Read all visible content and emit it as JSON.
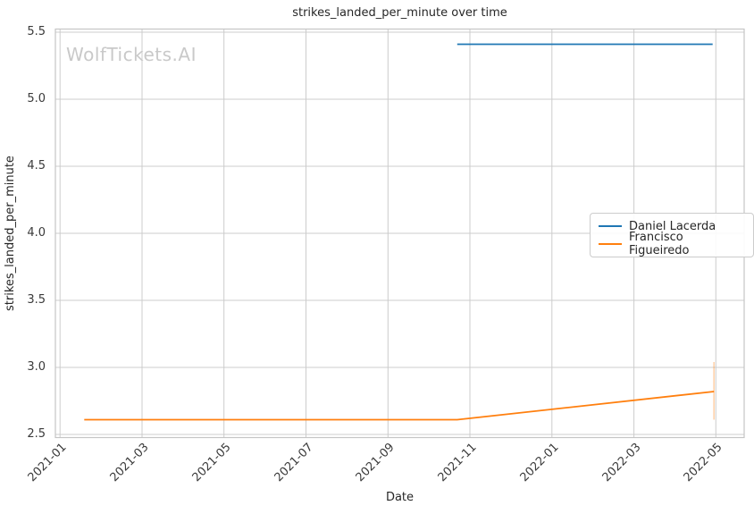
{
  "watermark": {
    "text": "WolfTickets.AI",
    "color": "#c9c9c9"
  },
  "chart_data": {
    "type": "line",
    "title": "strikes_landed_per_minute over time",
    "xlabel": "Date",
    "ylabel": "strikes_landed_per_minute",
    "x_tick_labels": [
      "2021-01",
      "2021-03",
      "2021-05",
      "2021-07",
      "2021-09",
      "2021-11",
      "2022-01",
      "2022-03",
      "2022-05"
    ],
    "y_ticks": [
      2.5,
      3.0,
      3.5,
      4.0,
      4.5,
      5.0,
      5.5
    ],
    "xlim": [
      "2020-12-28",
      "2022-05-22"
    ],
    "ylim": [
      2.477,
      5.523
    ],
    "grid": true,
    "legend_position": "center right",
    "series": [
      {
        "name": "Daniel Lacerda",
        "color": "#1f77b4",
        "points": [
          {
            "x": "2021-10-22",
            "y": 5.41
          },
          {
            "x": "2022-04-29",
            "y": 5.41
          }
        ]
      },
      {
        "name": "Francisco Figueiredo",
        "color": "#ff7f0e",
        "points": [
          {
            "x": "2021-01-19",
            "y": 2.61
          },
          {
            "x": "2021-10-22",
            "y": 2.61
          },
          {
            "x": "2022-04-30",
            "y": 2.82
          }
        ],
        "error_bars": [
          {
            "x": "2022-04-30",
            "low": 2.61,
            "high": 3.04
          }
        ]
      }
    ],
    "styles": {
      "grid_color": "#cccccc",
      "spine_color": "#c5c5c5",
      "text_color": "#262626",
      "error_bar_opacity": 0.35
    }
  }
}
